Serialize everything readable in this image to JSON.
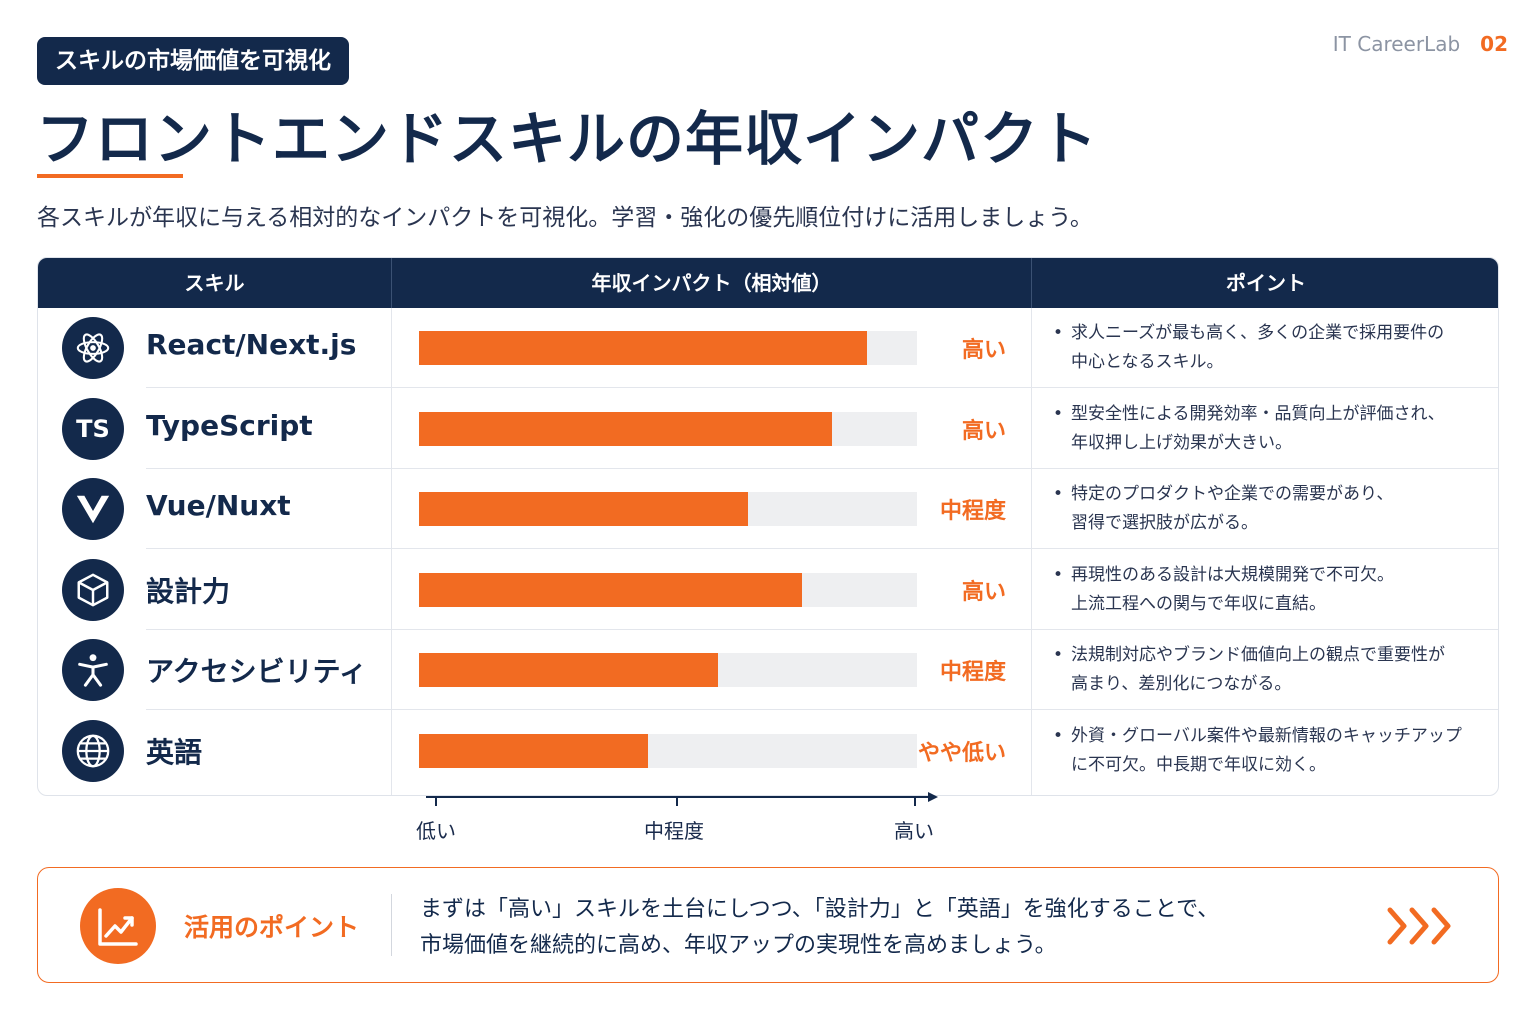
{
  "header": {
    "badge": "スキルの市場価値を可視化",
    "brand": "IT CareerLab",
    "page_number": "02",
    "title": "フロントエンドスキルの年収インパクト",
    "subtitle": "各スキルが年収に与える相対的なインパクトを可視化。学習・強化の優先順位付けに活用しましょう。"
  },
  "table": {
    "headers": {
      "skill": "スキル",
      "impact": "年収インパクト（相対値）",
      "point": "ポイント"
    }
  },
  "chart_data": {
    "type": "bar",
    "orientation": "horizontal",
    "categories": [
      "React/Next.js",
      "TypeScript",
      "Vue/Nuxt",
      "設計力",
      "アクセシビリティ",
      "英語"
    ],
    "values": [
      0.9,
      0.83,
      0.66,
      0.77,
      0.6,
      0.46
    ],
    "value_labels": [
      "高い",
      "高い",
      "中程度",
      "高い",
      "中程度",
      "やや低い"
    ],
    "xaxis_ticks": [
      "低い",
      "中程度",
      "高い"
    ],
    "xlim": [
      0,
      1
    ],
    "bar_color": "#f26b22",
    "track_color": "#eeeff1"
  },
  "rows": [
    {
      "skill": "React/Next.js",
      "icon": "react-atom-icon",
      "level": "高い",
      "point": [
        "求人ニーズが最も高く、多くの企業で採用要件の",
        "中心となるスキル。"
      ]
    },
    {
      "skill": "TypeScript",
      "icon": "typescript-icon",
      "icon_text": "TS",
      "level": "高い",
      "point": [
        "型安全性による開発効率・品質向上が評価され、",
        "年収押し上げ効果が大きい。"
      ]
    },
    {
      "skill": "Vue/Nuxt",
      "icon": "vue-icon",
      "level": "中程度",
      "point": [
        "特定のプロダクトや企業での需要があり、",
        "習得で選択肢が広がる。"
      ]
    },
    {
      "skill": "設計力",
      "icon": "cube-icon",
      "level": "高い",
      "point": [
        "再現性のある設計は大規模開発で不可欠。",
        "上流工程への関与で年収に直結。"
      ]
    },
    {
      "skill": "アクセシビリティ",
      "icon": "accessibility-icon",
      "level": "中程度",
      "point": [
        "法規制対応やブランド価値向上の観点で重要性が",
        "高まり、差別化につながる。"
      ]
    },
    {
      "skill": "英語",
      "icon": "globe-icon",
      "level": "やや低い",
      "point": [
        "外資・グローバル案件や最新情報のキャッチアップ",
        "に不可欠。中長期で年収に効く。"
      ]
    }
  ],
  "callout": {
    "label": "活用のポイント",
    "line1": "まずは「高い」スキルを土台にしつつ、「設計力」と「英語」を強化することで、",
    "line2": "市場価値を継続的に高め、年収アップの実現性を高めましょう。",
    "icon": "trend-up-icon"
  },
  "colors": {
    "navy": "#13294b",
    "accent": "#f26b22"
  }
}
